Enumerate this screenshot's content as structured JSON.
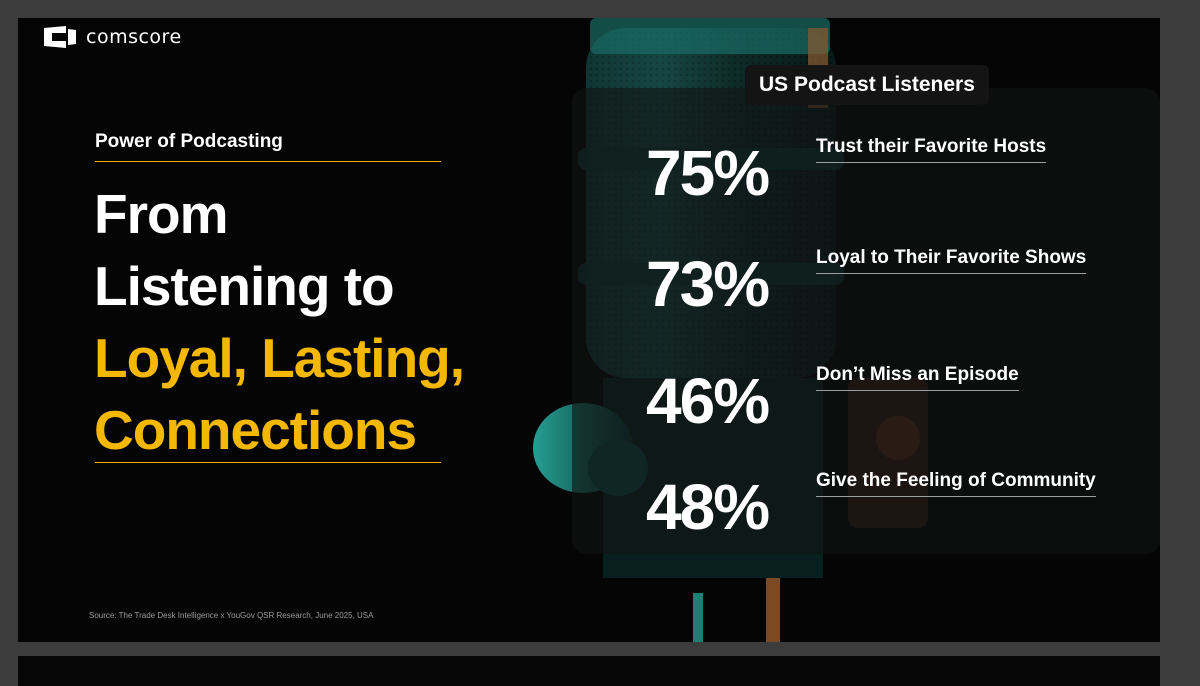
{
  "brand": {
    "name": "comscore"
  },
  "left": {
    "kicker": "Power of Podcasting",
    "headline_line1": "From",
    "headline_line2": "Listening to",
    "headline_line3": "Loyal, Lasting,",
    "headline_line4": "Connections",
    "source": "Source: The Trade Desk Intelligence x YouGov QSR Research, June 2025, USA"
  },
  "panel": {
    "title": "US Podcast Listeners",
    "stats": [
      {
        "value": "75%",
        "label": "Trust their Favorite Hosts"
      },
      {
        "value": "73%",
        "label": "Loyal to Their Favorite Shows"
      },
      {
        "value": "46%",
        "label": "Don’t Miss an Episode"
      },
      {
        "value": "48%",
        "label": "Give the Feeling of Community"
      }
    ]
  },
  "colors": {
    "accent": "#f5b800",
    "background": "#050505",
    "mic_teal": "#1f8a80"
  },
  "icons": {
    "logo": "comscore-logo-mark"
  }
}
